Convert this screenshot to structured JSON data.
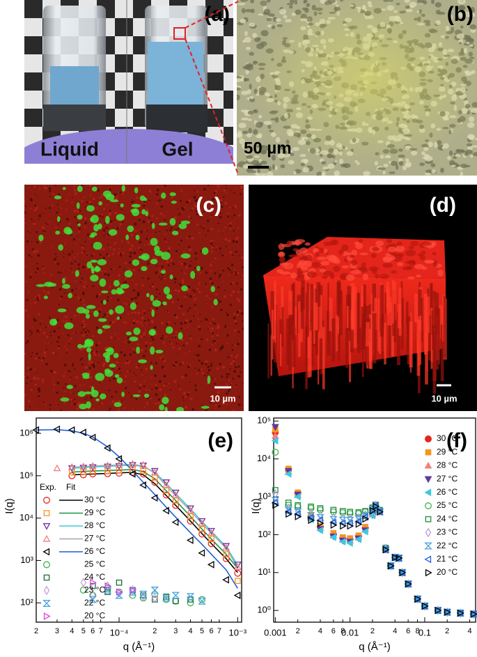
{
  "panels": {
    "a": {
      "label": "(a)",
      "texts": [
        "Liquid",
        "Gel"
      ]
    },
    "b": {
      "label": "(b)",
      "scale": "50 µm"
    },
    "c": {
      "label": "(c)",
      "scale": "10 µm"
    },
    "d": {
      "label": "(d)",
      "scale": "10 µm"
    }
  },
  "chart_data": [
    {
      "type": "scatter",
      "title": "(e)",
      "x_label": "q (Å⁻¹)",
      "y_label": "I(q)",
      "log_x": true,
      "log_y": true,
      "legend": "left",
      "legend_headers": [
        "Exp.",
        "Fit"
      ],
      "xlim": [
        2e-05,
        0.00108
      ],
      "ylim": [
        35,
        2300000
      ],
      "xticks": [
        {
          "value": 2e-05,
          "label": "2"
        },
        {
          "value": 3e-05,
          "label": "3"
        },
        {
          "value": 4e-05,
          "label": "4"
        },
        {
          "value": 5e-05,
          "label": "5"
        },
        {
          "value": 6e-05,
          "label": "6"
        },
        {
          "value": 7e-05,
          "label": "7"
        },
        {
          "value": 0.0001,
          "label": "10⁻⁴"
        },
        {
          "value": 0.0002,
          "label": "2"
        },
        {
          "value": 0.0003,
          "label": "3"
        },
        {
          "value": 0.0004,
          "label": "4"
        },
        {
          "value": 0.0005,
          "label": "5"
        },
        {
          "value": 0.0006,
          "label": "6"
        },
        {
          "value": 0.0007,
          "label": "7"
        },
        {
          "value": 0.001,
          "label": "10⁻³"
        }
      ],
      "yticks": [
        {
          "value": 100,
          "label": "10²"
        },
        {
          "value": 1000,
          "label": "10³"
        },
        {
          "value": 10000,
          "label": "10⁴"
        },
        {
          "value": 100000,
          "label": "10⁵"
        },
        {
          "value": 1000000,
          "label": "10⁶"
        }
      ],
      "x": [
        2e-05,
        3e-05,
        4e-05,
        5e-05,
        6e-05,
        8e-05,
        0.0001,
        0.00013,
        0.00016,
        0.0002,
        0.00025,
        0.0003,
        0.0004,
        0.0005,
        0.0006,
        0.0008,
        0.001
      ],
      "series": [
        {
          "name": "30 °C",
          "color": "#e8231f",
          "marker": "circle",
          "filled": false,
          "fit_color": "#000000",
          "values": [
            null,
            null,
            100000,
            105000,
            110000,
            112000,
            115000,
            120000,
            110000,
            70000,
            35000,
            20000,
            8500,
            4200,
            2500,
            1100,
            500
          ],
          "fit": [
            null,
            null,
            105000,
            108000,
            110000,
            113000,
            117000,
            120000,
            105000,
            65000,
            34000,
            20000,
            8500,
            4300,
            2500,
            1100,
            520
          ]
        },
        {
          "name": "29 °C",
          "color": "#f7941d",
          "marker": "square",
          "filled": false,
          "fit_color": "#1a9641",
          "values": [
            null,
            null,
            120000,
            125000,
            130000,
            130000,
            135000,
            140000,
            130000,
            90000,
            45000,
            26000,
            11000,
            5500,
            3200,
            1400,
            330
          ],
          "fit": [
            null,
            null,
            122000,
            126000,
            130000,
            132000,
            136000,
            140000,
            125000,
            85000,
            44000,
            26000,
            11000,
            5500,
            3200,
            1400,
            650
          ]
        },
        {
          "name": "28 °C",
          "color": "#7030a0",
          "marker": "triangle-down",
          "filled": false,
          "fit_color": "#3ec8e0",
          "values": [
            null,
            null,
            150000,
            155000,
            160000,
            165000,
            170000,
            180000,
            175000,
            130000,
            70000,
            40000,
            17000,
            8500,
            5000,
            2200,
            800
          ],
          "fit": [
            null,
            null,
            150000,
            156000,
            161000,
            166000,
            172000,
            178000,
            165000,
            120000,
            66000,
            38000,
            16500,
            8300,
            4900,
            2100,
            780
          ]
        },
        {
          "name": "27 °C",
          "color": "#f08080",
          "marker": "triangle-up",
          "filled": false,
          "fit_color": "#a6a6a6",
          "values": [
            null,
            150000,
            160000,
            165000,
            170000,
            175000,
            180000,
            190000,
            180000,
            120000,
            60000,
            35000,
            15000,
            7500,
            4500,
            2000,
            700
          ],
          "fit": [
            null,
            null,
            158000,
            164000,
            170000,
            175000,
            180000,
            185000,
            170000,
            115000,
            58000,
            34000,
            14800,
            7400,
            4400,
            1950,
            680
          ]
        },
        {
          "name": "26 °C",
          "color": "#000000",
          "marker": "triangle-left",
          "filled": false,
          "fit_color": "#1f5fd6",
          "values": [
            1200000,
            1250000,
            1200000,
            1050000,
            800000,
            450000,
            250000,
            110000,
            60000,
            30000,
            15000,
            8000,
            3000,
            1500,
            800,
            350,
            150
          ],
          "fit": [
            1200000,
            1220000,
            1150000,
            1000000,
            820000,
            480000,
            280000,
            130000,
            70000,
            36000,
            18000,
            10500,
            4500,
            2400,
            1400,
            600,
            220
          ]
        },
        {
          "name": "25 °C",
          "color": "#39b54a",
          "marker": "circle",
          "filled": false,
          "values": [
            null,
            null,
            null,
            200,
            150,
            220,
            180,
            150,
            130,
            160,
            120,
            110,
            100,
            120,
            null,
            null,
            null
          ]
        },
        {
          "name": "24 °C",
          "color": "#1e6b3a",
          "marker": "square",
          "filled": false,
          "values": [
            null,
            null,
            null,
            null,
            250,
            180,
            300,
            200,
            150,
            120,
            140,
            110,
            120,
            null,
            null,
            null,
            null
          ]
        },
        {
          "name": "23 °C",
          "color": "#c9a0dc",
          "marker": "diamond",
          "filled": false,
          "values": [
            null,
            null,
            null,
            300,
            150,
            250,
            170,
            200,
            140,
            130,
            null,
            null,
            null,
            null,
            null,
            null,
            null
          ]
        },
        {
          "name": "22 °C",
          "color": "#4aa3df",
          "marker": "hourglass",
          "filled": false,
          "values": [
            null,
            null,
            null,
            null,
            120,
            200,
            150,
            180,
            160,
            200,
            130,
            150,
            140,
            110,
            null,
            null,
            null
          ]
        },
        {
          "name": "20 °C",
          "color": "#e040e0",
          "marker": "triangle-right",
          "filled": false,
          "values": [
            null,
            null,
            null,
            null,
            300,
            250,
            180,
            200,
            null,
            null,
            null,
            null,
            null,
            null,
            null,
            null,
            null
          ]
        }
      ]
    },
    {
      "type": "scatter",
      "title": "(f)",
      "x_label": "q (Å⁻¹)",
      "y_label": "I(q)",
      "log_x": true,
      "log_y": true,
      "legend": "right",
      "xlim": [
        0.00095,
        0.48
      ],
      "ylim": [
        0.49,
        120000
      ],
      "xticks": [
        0.001,
        {
          "value": 0.002,
          "label": "2"
        },
        {
          "value": 0.004,
          "label": "4"
        },
        {
          "value": 0.006,
          "label": "6"
        },
        {
          "value": 0.008,
          "label": "8"
        },
        0.01,
        {
          "value": 0.02,
          "label": "2"
        },
        {
          "value": 0.04,
          "label": "4"
        },
        {
          "value": 0.06,
          "label": "6"
        },
        {
          "value": 0.08,
          "label": "8"
        },
        0.1,
        {
          "value": 0.2,
          "label": "2"
        },
        {
          "value": 0.4,
          "label": "4"
        }
      ],
      "yticks": [
        {
          "value": 1,
          "label": "10⁰"
        },
        {
          "value": 10,
          "label": "10¹"
        },
        {
          "value": 100,
          "label": "10²"
        },
        {
          "value": 1000,
          "label": "10³"
        },
        {
          "value": 10000,
          "label": "10⁴"
        },
        {
          "value": 100000,
          "label": "10⁵"
        }
      ],
      "x": [
        0.001,
        0.0015,
        0.002,
        0.003,
        0.004,
        0.006,
        0.008,
        0.01,
        0.013,
        0.016,
        0.02,
        0.022,
        0.025,
        0.03,
        0.035,
        0.04,
        0.045,
        0.05,
        0.06,
        0.08,
        0.1,
        0.15,
        0.2,
        0.3,
        0.45
      ],
      "series": [
        {
          "name": "30 °C",
          "color": "#e8231f",
          "marker": "circle",
          "filled": true,
          "values": [
            50000,
            5000,
            1200,
            300,
            160,
            100,
            80,
            75,
            90,
            150,
            350,
            550,
            400,
            40,
            15,
            25,
            24,
            10,
            5,
            2,
            1.3,
            1.0,
            0.9,
            0.85,
            0.8
          ]
        },
        {
          "name": "29 °C",
          "color": "#f7941d",
          "marker": "square",
          "filled": true,
          "values": [
            60000,
            5500,
            1300,
            320,
            170,
            110,
            85,
            80,
            95,
            160,
            360,
            560,
            410,
            41,
            15,
            25,
            24,
            10,
            5,
            2,
            1.3,
            1.0,
            0.9,
            0.85,
            0.8
          ]
        },
        {
          "name": "28 °C",
          "color": "#f08080",
          "marker": "triangle-up",
          "filled": true,
          "values": [
            40000,
            4500,
            1100,
            280,
            150,
            95,
            75,
            70,
            85,
            140,
            340,
            540,
            390,
            40,
            15,
            25,
            24,
            10,
            5,
            2,
            1.3,
            1.0,
            0.9,
            0.85,
            0.8
          ]
        },
        {
          "name": "27 °C",
          "color": "#5b3a9e",
          "marker": "triangle-down",
          "filled": true,
          "values": [
            70000,
            4800,
            1150,
            260,
            140,
            90,
            70,
            65,
            80,
            130,
            330,
            530,
            400,
            40,
            15,
            25,
            24,
            10,
            5,
            2,
            1.3,
            1.0,
            0.9,
            0.85,
            0.8
          ]
        },
        {
          "name": "26 °C",
          "color": "#3ec8e0",
          "marker": "triangle-left",
          "filled": true,
          "values": [
            30000,
            4000,
            1000,
            250,
            130,
            85,
            65,
            60,
            75,
            120,
            320,
            520,
            400,
            40,
            15,
            25,
            24,
            10,
            5,
            2,
            1.3,
            1.0,
            0.9,
            0.85,
            0.8
          ]
        },
        {
          "name": "25 °C",
          "color": "#39b54a",
          "marker": "circle",
          "filled": false,
          "values": [
            15000,
            600,
            550,
            500,
            450,
            400,
            380,
            360,
            360,
            400,
            500,
            600,
            450,
            45,
            15,
            25,
            24,
            10,
            5,
            2,
            1.3,
            1.0,
            0.9,
            0.85,
            0.8
          ]
        },
        {
          "name": "24 °C",
          "color": "#1e8c3a",
          "marker": "square",
          "filled": false,
          "values": [
            1500,
            700,
            600,
            550,
            500,
            450,
            420,
            400,
            390,
            420,
            520,
            620,
            450,
            45,
            15,
            25,
            24,
            10,
            5,
            2,
            1.3,
            1.0,
            0.9,
            0.85,
            0.8
          ]
        },
        {
          "name": "23 °C",
          "color": "#b79fd6",
          "marker": "diamond",
          "filled": false,
          "values": [
            1200,
            500,
            420,
            360,
            320,
            290,
            280,
            270,
            280,
            340,
            480,
            590,
            420,
            42,
            15,
            25,
            24,
            10,
            5,
            2,
            1.3,
            1.0,
            0.9,
            0.85,
            0.8
          ]
        },
        {
          "name": "22 °C",
          "color": "#4aa3df",
          "marker": "hourglass",
          "filled": false,
          "values": [
            800,
            450,
            400,
            320,
            280,
            250,
            240,
            240,
            260,
            320,
            470,
            580,
            410,
            41,
            15,
            25,
            24,
            10,
            5,
            2,
            1.3,
            1.0,
            0.9,
            0.85,
            0.8
          ]
        },
        {
          "name": "21 °C",
          "color": "#1f5fd6",
          "marker": "triangle-left",
          "filled": false,
          "values": [
            700,
            400,
            350,
            280,
            240,
            210,
            200,
            200,
            220,
            290,
            450,
            570,
            400,
            40,
            15,
            25,
            24,
            10,
            5,
            2,
            1.3,
            1.0,
            0.9,
            0.85,
            0.8
          ]
        },
        {
          "name": "20 °C",
          "color": "#000000",
          "marker": "triangle-right",
          "filled": false,
          "values": [
            600,
            350,
            300,
            240,
            200,
            180,
            170,
            170,
            190,
            260,
            430,
            560,
            400,
            40,
            15,
            25,
            24,
            10,
            5,
            2,
            1.3,
            1.0,
            0.9,
            0.85,
            0.8
          ]
        }
      ]
    }
  ]
}
